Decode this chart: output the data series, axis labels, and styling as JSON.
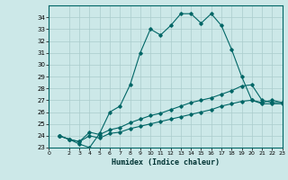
{
  "xlabel": "Humidex (Indice chaleur)",
  "background_color": "#cce8e8",
  "grid_color": "#aacccc",
  "line_color": "#006666",
  "xlim": [
    0,
    23
  ],
  "ylim": [
    23,
    35
  ],
  "xticks": [
    0,
    2,
    3,
    4,
    5,
    6,
    7,
    8,
    9,
    10,
    11,
    12,
    13,
    14,
    15,
    16,
    17,
    18,
    19,
    20,
    21,
    22,
    23
  ],
  "yticks": [
    23,
    24,
    25,
    26,
    27,
    28,
    29,
    30,
    31,
    32,
    33,
    34
  ],
  "line1_x": [
    1,
    2,
    3,
    4,
    5,
    6,
    7,
    8,
    9,
    10,
    11,
    12,
    13,
    14,
    15,
    16,
    17,
    18,
    19,
    20,
    21,
    22,
    23
  ],
  "line1_y": [
    24.0,
    23.7,
    23.3,
    23.0,
    24.2,
    26.0,
    26.5,
    28.3,
    31.0,
    33.0,
    32.5,
    33.3,
    34.3,
    34.3,
    33.5,
    34.3,
    33.3,
    31.3,
    29.0,
    27.0,
    26.8,
    27.0,
    26.8
  ],
  "line2_x": [
    1,
    2,
    3,
    4,
    5,
    6,
    7,
    8,
    9,
    10,
    11,
    12,
    13,
    14,
    15,
    16,
    17,
    18,
    19,
    20,
    21,
    22,
    23
  ],
  "line2_y": [
    24.0,
    23.7,
    23.5,
    24.3,
    24.1,
    24.5,
    24.7,
    25.1,
    25.4,
    25.7,
    25.9,
    26.2,
    26.5,
    26.8,
    27.0,
    27.2,
    27.5,
    27.8,
    28.2,
    28.3,
    27.0,
    26.8,
    26.8
  ],
  "line3_x": [
    1,
    2,
    3,
    4,
    5,
    6,
    7,
    8,
    9,
    10,
    11,
    12,
    13,
    14,
    15,
    16,
    17,
    18,
    19,
    20,
    21,
    22,
    23
  ],
  "line3_y": [
    24.0,
    23.7,
    23.5,
    24.0,
    23.8,
    24.2,
    24.3,
    24.6,
    24.8,
    25.0,
    25.2,
    25.4,
    25.6,
    25.8,
    26.0,
    26.2,
    26.5,
    26.7,
    26.9,
    27.0,
    26.7,
    26.7,
    26.7
  ]
}
